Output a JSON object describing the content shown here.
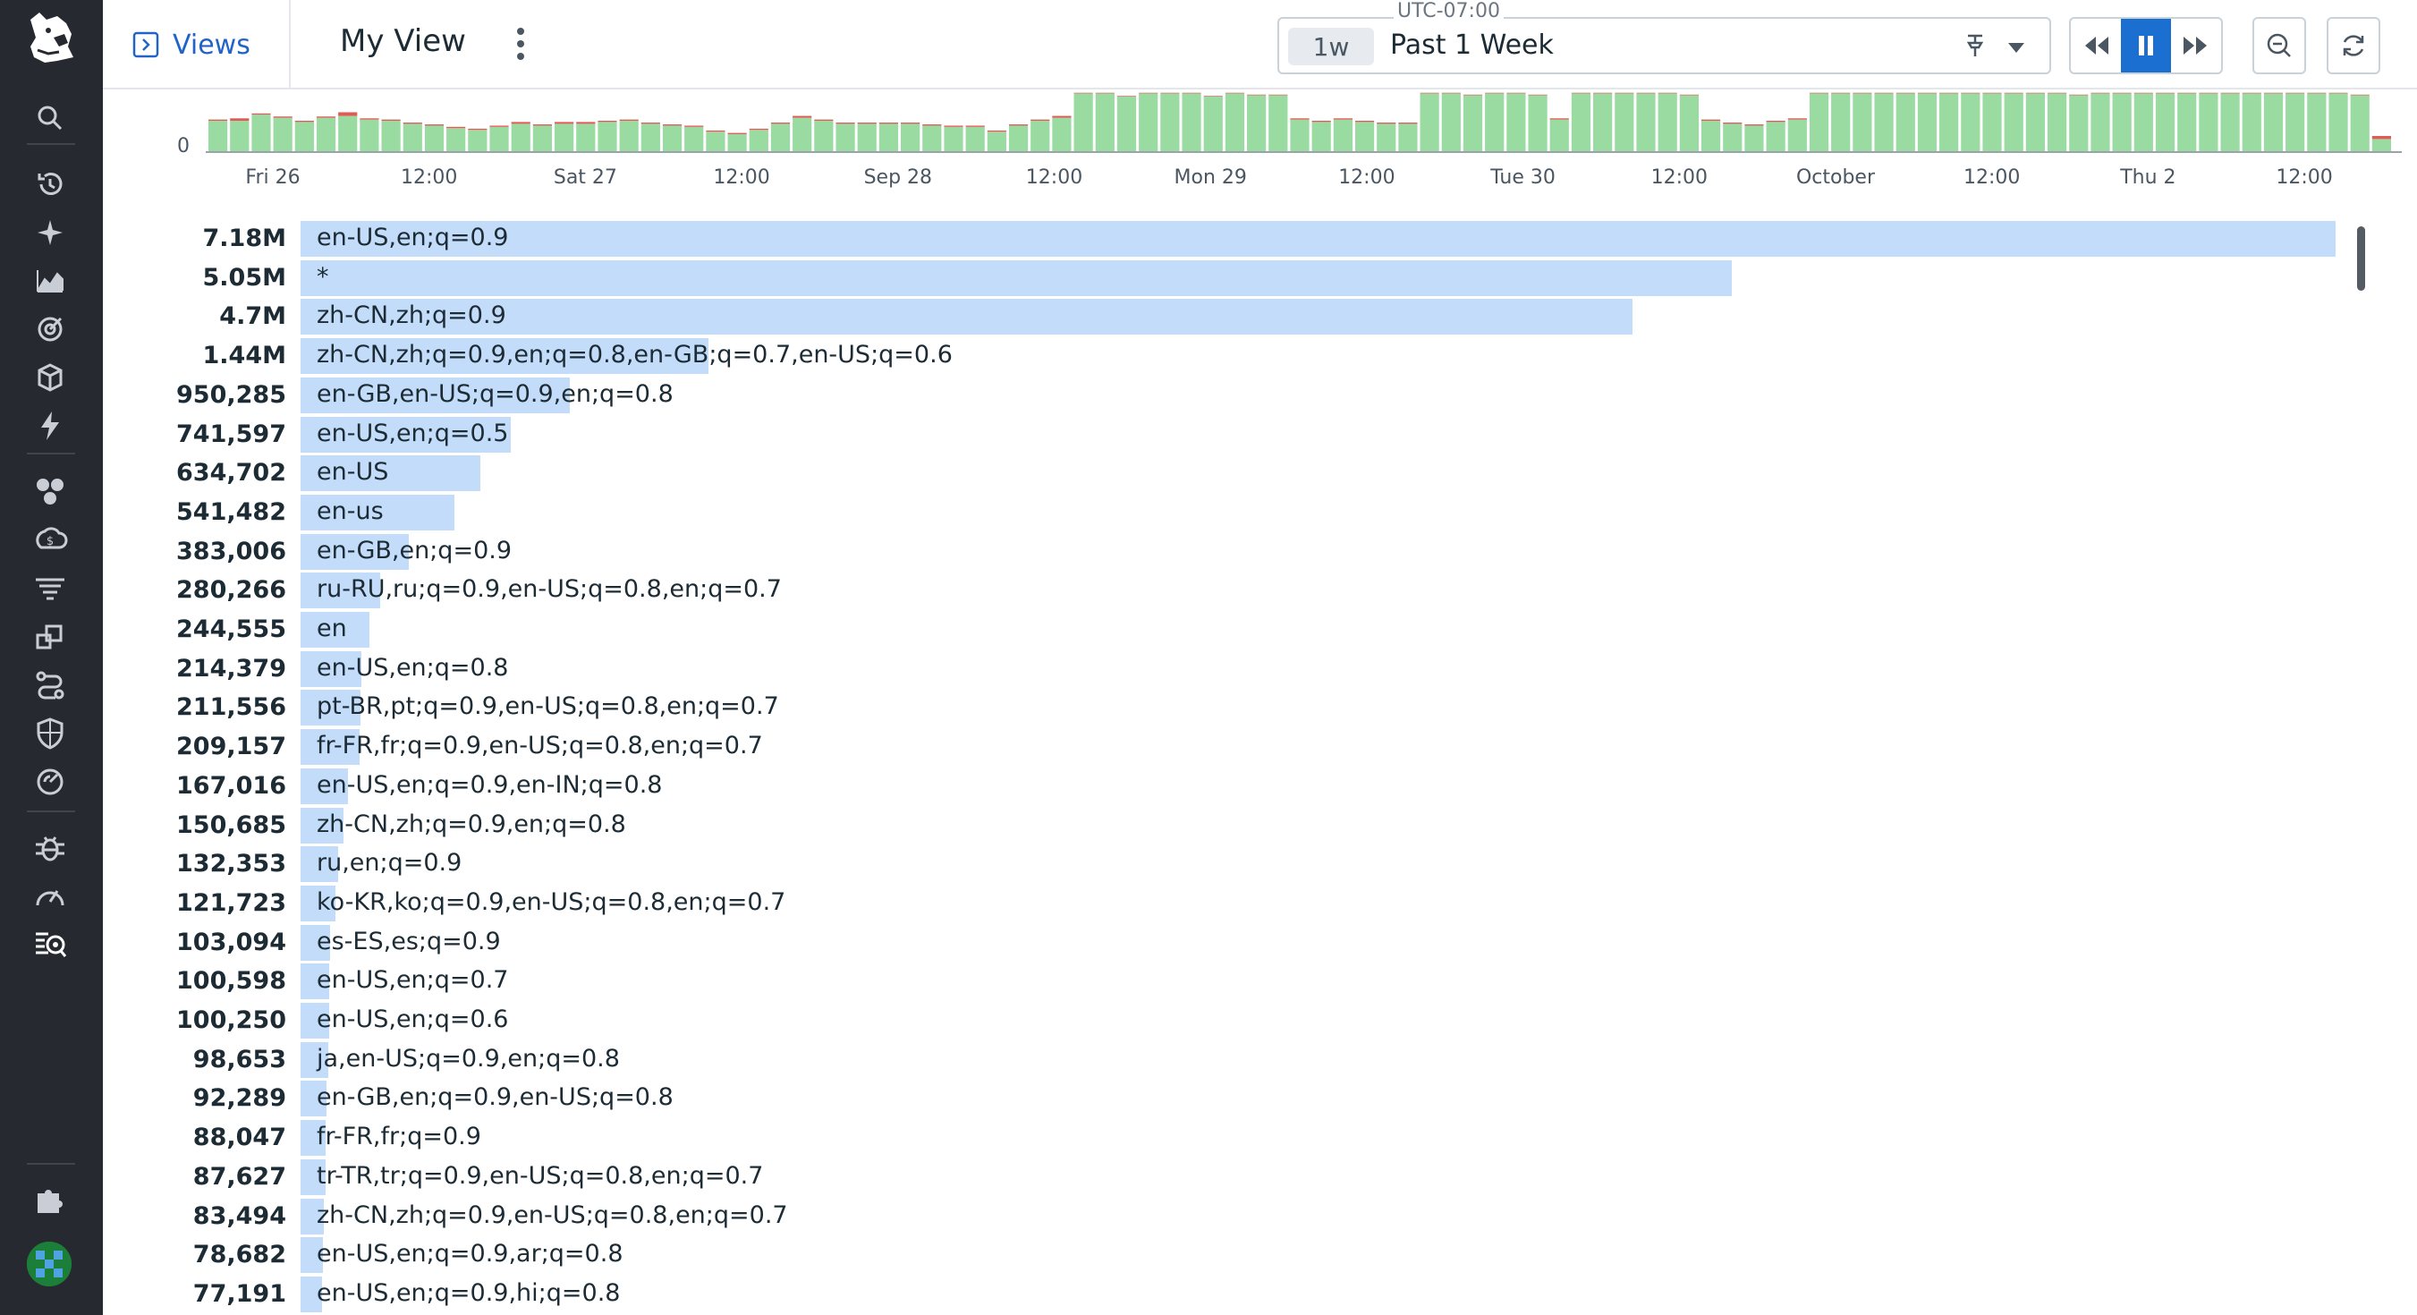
{
  "header": {
    "views_label": "Views",
    "view_name": "My View",
    "timezone": "UTC-07:00",
    "time_chip": "1w",
    "time_label": "Past 1 Week"
  },
  "nav": {
    "icons": [
      "search-icon",
      "history-icon",
      "sparkle-icon",
      "chart-icon",
      "target-icon",
      "layers-icon",
      "bolt-icon",
      "hexagons-icon",
      "cost-icon",
      "filter-lines-icon",
      "blocks-icon",
      "route-icon",
      "shield-icon",
      "progress-icon",
      "bug-icon",
      "speedometer-icon",
      "logs-icon",
      "puzzle-icon"
    ]
  },
  "timeline": {
    "y_label": "0",
    "x_labels": [
      "Fri 26",
      "12:00",
      "Sat 27",
      "12:00",
      "Sep 28",
      "12:00",
      "Mon 29",
      "12:00",
      "Tue 30",
      "12:00",
      "October",
      "12:00",
      "Thu 2",
      "12:00"
    ],
    "bar_color": "#99dba1",
    "error_color": "#e25a56",
    "heights": [
      0.5,
      0.5,
      0.6,
      0.55,
      0.48,
      0.55,
      0.58,
      0.52,
      0.5,
      0.45,
      0.42,
      0.38,
      0.35,
      0.4,
      0.45,
      0.42,
      0.45,
      0.45,
      0.48,
      0.5,
      0.45,
      0.42,
      0.4,
      0.32,
      0.28,
      0.35,
      0.45,
      0.55,
      0.5,
      0.45,
      0.45,
      0.45,
      0.45,
      0.42,
      0.4,
      0.4,
      0.32,
      0.42,
      0.5,
      0.55,
      0.95,
      0.95,
      0.9,
      0.95,
      0.95,
      0.95,
      0.9,
      0.95,
      0.92,
      0.92,
      0.52,
      0.48,
      0.52,
      0.48,
      0.45,
      0.45,
      0.95,
      0.95,
      0.92,
      0.95,
      0.95,
      0.92,
      0.52,
      0.95,
      0.95,
      0.95,
      0.95,
      0.95,
      0.92,
      0.5,
      0.45,
      0.42,
      0.48,
      0.52,
      0.95,
      0.95,
      0.95,
      0.95,
      0.95,
      0.95,
      0.95,
      0.95,
      0.95,
      0.95,
      0.95,
      0.95,
      0.92,
      0.95,
      0.95,
      0.95,
      0.95,
      0.95,
      0.95,
      0.95,
      0.95,
      0.95,
      0.95,
      0.95,
      0.95,
      0.92,
      0.2
    ],
    "errors": [
      0.02,
      0.04,
      0.02,
      0.02,
      0.02,
      0.02,
      0.06,
      0.02,
      0.02,
      0.02,
      0.02,
      0.02,
      0.02,
      0.02,
      0.03,
      0.02,
      0.03,
      0.03,
      0.02,
      0.02,
      0.02,
      0.02,
      0.02,
      0.02,
      0.02,
      0.02,
      0.02,
      0.03,
      0.02,
      0.02,
      0.02,
      0.02,
      0.02,
      0.02,
      0.02,
      0.02,
      0.02,
      0.02,
      0.02,
      0.03,
      0.01,
      0.01,
      0.01,
      0.01,
      0.01,
      0.01,
      0.01,
      0.01,
      0.01,
      0.01,
      0.02,
      0.02,
      0.02,
      0.02,
      0.02,
      0.02,
      0.01,
      0.01,
      0.01,
      0.01,
      0.01,
      0.01,
      0.02,
      0.01,
      0.01,
      0.01,
      0.01,
      0.01,
      0.01,
      0.02,
      0.02,
      0.02,
      0.02,
      0.02,
      0.01,
      0.01,
      0.01,
      0.01,
      0.01,
      0.01,
      0.01,
      0.01,
      0.01,
      0.01,
      0.01,
      0.01,
      0.01,
      0.01,
      0.01,
      0.01,
      0.01,
      0.01,
      0.01,
      0.01,
      0.01,
      0.01,
      0.01,
      0.01,
      0.01,
      0.01,
      0.05
    ]
  },
  "toplist": {
    "bar_color": "#c2dcfa",
    "rows": [
      {
        "value": "7.18M",
        "label": "en-US,en;q=0.9",
        "n": 7180000
      },
      {
        "value": "5.05M",
        "label": "*",
        "n": 5050000
      },
      {
        "value": "4.7M",
        "label": "zh-CN,zh;q=0.9",
        "n": 4700000
      },
      {
        "value": "1.44M",
        "label": "zh-CN,zh;q=0.9,en;q=0.8,en-GB;q=0.7,en-US;q=0.6",
        "n": 1440000
      },
      {
        "value": "950,285",
        "label": "en-GB,en-US;q=0.9,en;q=0.8",
        "n": 950285
      },
      {
        "value": "741,597",
        "label": "en-US,en;q=0.5",
        "n": 741597
      },
      {
        "value": "634,702",
        "label": "en-US",
        "n": 634702
      },
      {
        "value": "541,482",
        "label": "en-us",
        "n": 541482
      },
      {
        "value": "383,006",
        "label": "en-GB,en;q=0.9",
        "n": 383006
      },
      {
        "value": "280,266",
        "label": "ru-RU,ru;q=0.9,en-US;q=0.8,en;q=0.7",
        "n": 280266
      },
      {
        "value": "244,555",
        "label": "en",
        "n": 244555
      },
      {
        "value": "214,379",
        "label": "en-US,en;q=0.8",
        "n": 214379
      },
      {
        "value": "211,556",
        "label": "pt-BR,pt;q=0.9,en-US;q=0.8,en;q=0.7",
        "n": 211556
      },
      {
        "value": "209,157",
        "label": "fr-FR,fr;q=0.9,en-US;q=0.8,en;q=0.7",
        "n": 209157
      },
      {
        "value": "167,016",
        "label": "en-US,en;q=0.9,en-IN;q=0.8",
        "n": 167016
      },
      {
        "value": "150,685",
        "label": "zh-CN,zh;q=0.9,en;q=0.8",
        "n": 150685
      },
      {
        "value": "132,353",
        "label": "ru,en;q=0.9",
        "n": 132353
      },
      {
        "value": "121,723",
        "label": "ko-KR,ko;q=0.9,en-US;q=0.8,en;q=0.7",
        "n": 121723
      },
      {
        "value": "103,094",
        "label": "es-ES,es;q=0.9",
        "n": 103094
      },
      {
        "value": "100,598",
        "label": "en-US,en;q=0.7",
        "n": 100598
      },
      {
        "value": "100,250",
        "label": "en-US,en;q=0.6",
        "n": 100250
      },
      {
        "value": "98,653",
        "label": "ja,en-US;q=0.9,en;q=0.8",
        "n": 98653
      },
      {
        "value": "92,289",
        "label": "en-GB,en;q=0.9,en-US;q=0.8",
        "n": 92289
      },
      {
        "value": "88,047",
        "label": "fr-FR,fr;q=0.9",
        "n": 88047
      },
      {
        "value": "87,627",
        "label": "tr-TR,tr;q=0.9,en-US;q=0.8,en;q=0.7",
        "n": 87627
      },
      {
        "value": "83,494",
        "label": "zh-CN,zh;q=0.9,en-US;q=0.8,en;q=0.7",
        "n": 83494
      },
      {
        "value": "78,682",
        "label": "en-US,en;q=0.9,ar;q=0.8",
        "n": 78682
      },
      {
        "value": "77,191",
        "label": "en-US,en;q=0.9,hi;q=0.8",
        "n": 77191
      }
    ]
  }
}
